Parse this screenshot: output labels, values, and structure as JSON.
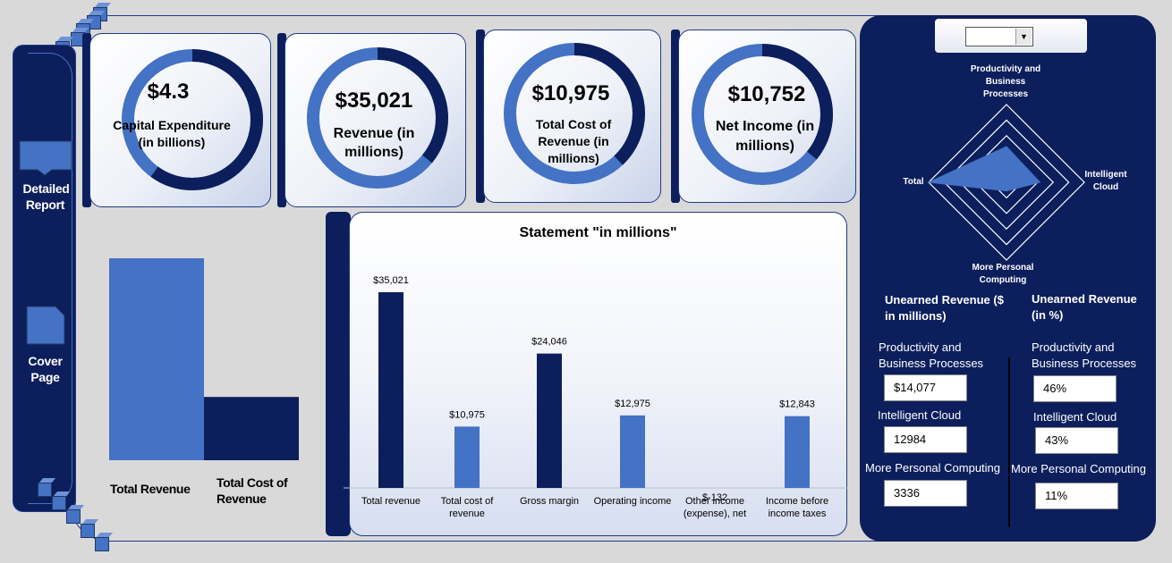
{
  "sidebar": {
    "detailed_report": "Detailed Report",
    "cover_page": "Cover Page"
  },
  "kpis": [
    {
      "value": "$4.3",
      "label": "Capital Expenditure (in billions)",
      "fraction": 0.6
    },
    {
      "value": "$35,021",
      "label": "Revenue (in millions)",
      "fraction": 0.36
    },
    {
      "value": "$10,975",
      "label": "Total Cost of Revenue (in millions)",
      "fraction": 0.38
    },
    {
      "value": "$10,752",
      "label": "Net Income (in millions)",
      "fraction": 0.36
    }
  ],
  "comparison": {
    "categories": [
      "Total Revenue",
      "Total Cost of Revenue"
    ],
    "values": [
      35021,
      10975
    ],
    "colors": [
      "#4472c4",
      "#0c1f5c"
    ]
  },
  "chart_data": {
    "type": "bar",
    "title": "Statement \"in millions\"",
    "categories": [
      "Total revenue",
      "Total cost of revenue",
      "Gross margin",
      "Operating income",
      "Other income (expense), net",
      "Income before income taxes"
    ],
    "values": [
      35021,
      10975,
      24046,
      12975,
      -132,
      12843
    ],
    "data_labels": [
      "$35,021",
      "$10,975",
      "$24,046",
      "$12,975",
      "$-132",
      "$12,843"
    ],
    "colors": [
      "#0c1f5c",
      "#4472c4",
      "#0c1f5c",
      "#4472c4",
      "#0c1f5c",
      "#4472c4"
    ],
    "ylim": [
      0,
      40000
    ],
    "xlabel": "",
    "ylabel": ""
  },
  "radar": {
    "axes": [
      "Productivity and Business Processes",
      "Intelligent Cloud",
      "More Personal Computing",
      "Total"
    ],
    "values": [
      0.46,
      0.43,
      0.11,
      1.0
    ]
  },
  "unearned": {
    "left_title": "Unearned Revenue ($ in millions)",
    "right_title": "Unearned Revenue (in %)",
    "rows": [
      {
        "label": "Productivity and Business Processes",
        "amount": "$14,077",
        "percent": "46%"
      },
      {
        "label": "Intelligent Cloud",
        "amount": "12984",
        "percent": "43%"
      },
      {
        "label": "More Personal Computing",
        "amount": "3336",
        "percent": "11%"
      }
    ]
  },
  "dropdown": {
    "selected": ""
  },
  "colors": {
    "navy": "#0c1f5c",
    "blue": "#4472c4",
    "border": "#1f3a8a"
  }
}
